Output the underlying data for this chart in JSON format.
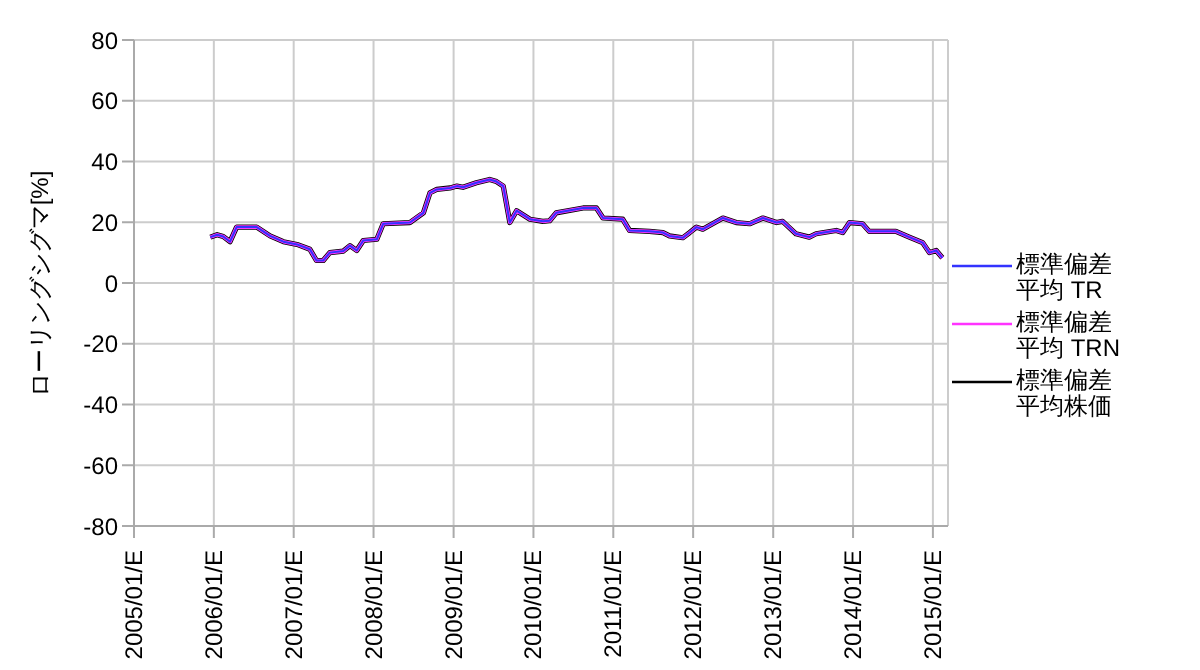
{
  "chart_data": {
    "type": "line",
    "ylabel": "ローリングシグマ[%]",
    "x": [
      "2006-01",
      "2006-02",
      "2006-03",
      "2006-04",
      "2006-05",
      "2006-08",
      "2006-10",
      "2006-12",
      "2007-02",
      "2007-04",
      "2007-05",
      "2007-06",
      "2007-07",
      "2007-09",
      "2007-10",
      "2007-11",
      "2007-12",
      "2008-02",
      "2008-03",
      "2008-07",
      "2008-09",
      "2008-10",
      "2008-11",
      "2009-01",
      "2009-02",
      "2009-03",
      "2009-05",
      "2009-07",
      "2009-08",
      "2009-09",
      "2009-10",
      "2009-11",
      "2010-01",
      "2010-03",
      "2010-04",
      "2010-05",
      "2010-09",
      "2010-11",
      "2010-12",
      "2011-03",
      "2011-04",
      "2011-07",
      "2011-09",
      "2011-10",
      "2011-12",
      "2012-01",
      "2012-02",
      "2012-03",
      "2012-06",
      "2012-08",
      "2012-10",
      "2012-12",
      "2013-02",
      "2013-03",
      "2013-05",
      "2013-07",
      "2013-08",
      "2013-11",
      "2013-12",
      "2014-01",
      "2014-03",
      "2014-04",
      "2014-08",
      "2014-10",
      "2014-12",
      "2015-01",
      "2015-02",
      "2015-03"
    ],
    "series": [
      {
        "name": "標準偏差平均 TR",
        "color": "#3333ff",
        "values": [
          15.1,
          15.9,
          15.3,
          13.6,
          18.4,
          18.4,
          15.5,
          13.6,
          12.7,
          11.1,
          7.4,
          7.4,
          10,
          10.5,
          12.3,
          10.7,
          14,
          14.4,
          19.5,
          19.9,
          23.1,
          29.7,
          30.8,
          31.3,
          31.9,
          31.5,
          33,
          34.1,
          33.4,
          31.9,
          19.9,
          23.8,
          21,
          20.3,
          20.5,
          23.1,
          24.7,
          24.7,
          21.4,
          21,
          17.3,
          17,
          16.6,
          15.5,
          14.9,
          16.6,
          18.4,
          17.7,
          21.4,
          19.9,
          19.5,
          21.4,
          19.9,
          20.3,
          16.2,
          15.1,
          16.2,
          17.3,
          16.6,
          19.9,
          19.5,
          17,
          17,
          15.1,
          13.3,
          10,
          10.7,
          8.3
        ]
      },
      {
        "name": "標準偏差平均 TRN",
        "color": "#ff33ff",
        "values": [
          15.1,
          15.9,
          15.3,
          13.6,
          18.4,
          18.4,
          15.5,
          13.6,
          12.7,
          11.1,
          7.4,
          7.4,
          10,
          10.5,
          12.3,
          10.7,
          14,
          14.4,
          19.5,
          19.9,
          23.1,
          29.7,
          30.8,
          31.3,
          31.9,
          31.5,
          33,
          34.1,
          33.4,
          31.9,
          19.9,
          23.8,
          21,
          20.3,
          20.5,
          23.1,
          24.7,
          24.7,
          21.4,
          21,
          17.3,
          17,
          16.6,
          15.5,
          14.9,
          16.6,
          18.4,
          17.7,
          21.4,
          19.9,
          19.5,
          21.4,
          19.9,
          20.3,
          16.2,
          15.1,
          16.2,
          17.3,
          16.6,
          19.9,
          19.5,
          17,
          17,
          15.1,
          13.3,
          10,
          10.7,
          8.3
        ]
      },
      {
        "name": "標準偏差平均株価",
        "color": "#000000",
        "values": [
          15.1,
          15.9,
          15.3,
          13.6,
          18.4,
          18.4,
          15.5,
          13.6,
          12.7,
          11.1,
          7.4,
          7.4,
          10,
          10.5,
          12.3,
          10.7,
          14,
          14.4,
          19.5,
          19.9,
          23.1,
          29.7,
          30.8,
          31.3,
          31.9,
          31.5,
          33,
          34.1,
          33.4,
          31.9,
          19.9,
          23.8,
          21,
          20.3,
          20.5,
          23.1,
          24.7,
          24.7,
          21.4,
          21,
          17.3,
          17,
          16.6,
          15.5,
          14.9,
          16.6,
          18.4,
          17.7,
          21.4,
          19.9,
          19.5,
          21.4,
          19.9,
          20.3,
          16.2,
          15.1,
          16.2,
          17.3,
          16.6,
          19.9,
          19.5,
          17,
          17,
          15.1,
          13.3,
          10,
          10.7,
          8.3
        ]
      }
    ],
    "xlim": [
      "2005-01-31",
      "2015-04-10"
    ],
    "xticks": [
      {
        "value": "2005-01-31",
        "label": "2005/01/E"
      },
      {
        "value": "2006-01-31",
        "label": "2006/01/E"
      },
      {
        "value": "2007-01-31",
        "label": "2007/01/E"
      },
      {
        "value": "2008-01-31",
        "label": "2008/01/E"
      },
      {
        "value": "2009-01-31",
        "label": "2009/01/E"
      },
      {
        "value": "2010-01-31",
        "label": "2010/01/E"
      },
      {
        "value": "2011-01-31",
        "label": "2011/01/E"
      },
      {
        "value": "2012-01-31",
        "label": "2012/01/E"
      },
      {
        "value": "2013-01-31",
        "label": "2013/01/E"
      },
      {
        "value": "2014-01-31",
        "label": "2014/01/E"
      },
      {
        "value": "2015-01-31",
        "label": "2015/01/E"
      }
    ],
    "ylim": [
      -80,
      80
    ],
    "yticks": [
      -80,
      -60,
      -40,
      -20,
      0,
      20,
      40,
      60,
      80
    ],
    "grid": true,
    "legend": "right",
    "marker": "none",
    "line_style": "solid"
  }
}
